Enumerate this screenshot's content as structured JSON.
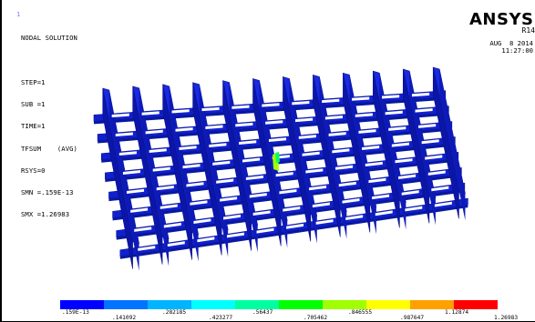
{
  "window": {
    "title": "ANSYS Nodal Solution"
  },
  "info": {
    "lines": [
      "NODAL SOLUTION",
      "",
      "STEP=1",
      "SUB =1",
      "TIME=1",
      "TFSUM    (AVG)",
      "RSYS=0",
      "SMN =.159E-13",
      "SMX =1.26983"
    ]
  },
  "brand": {
    "logo": "ANSYS",
    "release": "R14"
  },
  "timestamp": {
    "date": "AUG  8 2014",
    "time": "11:27:00"
  },
  "legend": {
    "colors": [
      "#0000ff",
      "#0073ff",
      "#00b4ff",
      "#00ffff",
      "#00ffa0",
      "#00ff00",
      "#a0ff00",
      "#ffff00",
      "#ffa000",
      "#ff0000"
    ],
    "labels_top": [
      ".159E-13",
      ".282185",
      ".56437",
      ".846555",
      "1.12874"
    ],
    "labels_bottom": [
      ".141092",
      ".423277",
      ".705462",
      ".987647",
      "1.26983"
    ]
  }
}
